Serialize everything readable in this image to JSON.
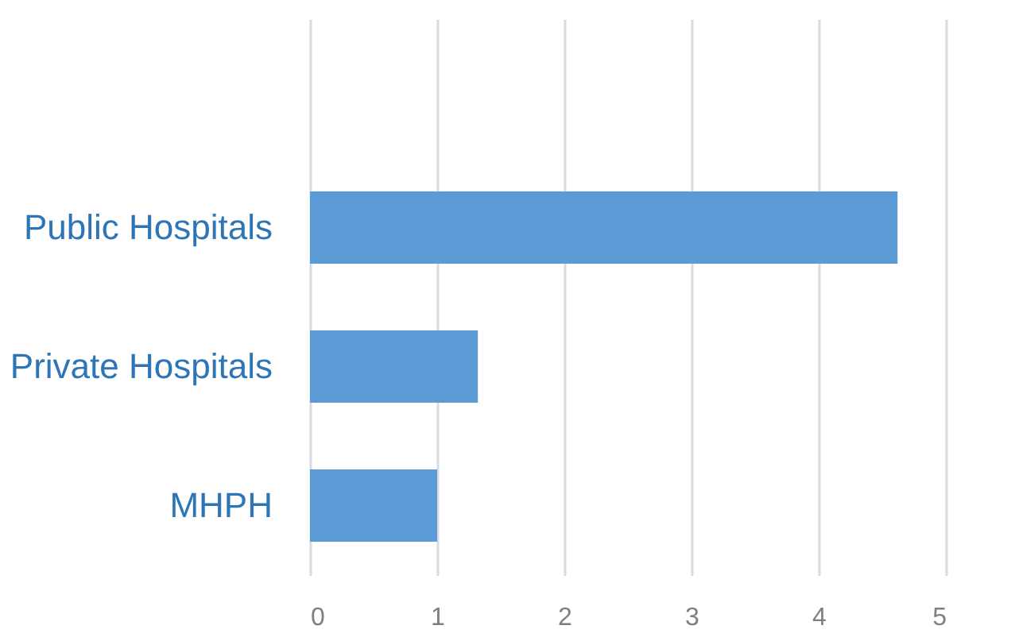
{
  "chart_data": {
    "type": "bar",
    "orientation": "horizontal",
    "categories": [
      null,
      "Public Hospitals",
      "Private Hospitals",
      "MHPH"
    ],
    "values": [
      null,
      4.62,
      1.32,
      1.0
    ],
    "color": "#5b9bd5",
    "xlim": [
      0,
      5
    ],
    "xticks": [
      0,
      1,
      2,
      3,
      4,
      5
    ],
    "grid": "x"
  }
}
